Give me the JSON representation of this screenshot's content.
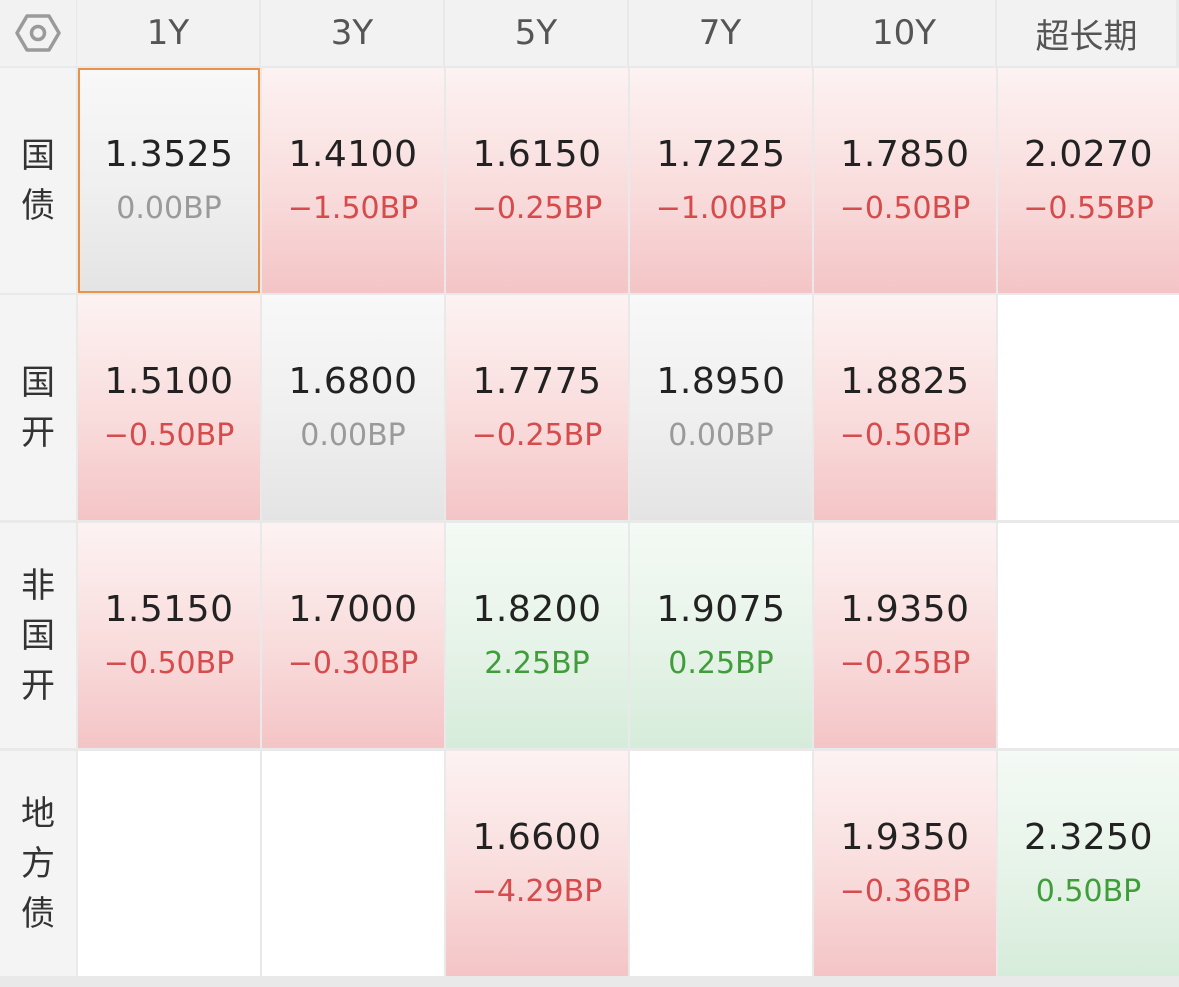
{
  "columns": [
    "1Y",
    "3Y",
    "5Y",
    "7Y",
    "10Y",
    "超长期"
  ],
  "rows": [
    {
      "label": [
        "国",
        "债"
      ],
      "cells": [
        {
          "rate": "1.3525",
          "change": "0.00BP",
          "trend": "flat",
          "selected": true
        },
        {
          "rate": "1.4100",
          "change": "−1.50BP",
          "trend": "down"
        },
        {
          "rate": "1.6150",
          "change": "−0.25BP",
          "trend": "down"
        },
        {
          "rate": "1.7225",
          "change": "−1.00BP",
          "trend": "down"
        },
        {
          "rate": "1.7850",
          "change": "−0.50BP",
          "trend": "down"
        },
        {
          "rate": "2.0270",
          "change": "−0.55BP",
          "trend": "down"
        }
      ]
    },
    {
      "label": [
        "国",
        "开"
      ],
      "cells": [
        {
          "rate": "1.5100",
          "change": "−0.50BP",
          "trend": "down"
        },
        {
          "rate": "1.6800",
          "change": "0.00BP",
          "trend": "flat"
        },
        {
          "rate": "1.7775",
          "change": "−0.25BP",
          "trend": "down"
        },
        {
          "rate": "1.8950",
          "change": "0.00BP",
          "trend": "flat"
        },
        {
          "rate": "1.8825",
          "change": "−0.50BP",
          "trend": "down"
        },
        null
      ]
    },
    {
      "label": [
        "非",
        "国",
        "开"
      ],
      "cells": [
        {
          "rate": "1.5150",
          "change": "−0.50BP",
          "trend": "down"
        },
        {
          "rate": "1.7000",
          "change": "−0.30BP",
          "trend": "down"
        },
        {
          "rate": "1.8200",
          "change": "2.25BP",
          "trend": "up"
        },
        {
          "rate": "1.9075",
          "change": "0.25BP",
          "trend": "up"
        },
        {
          "rate": "1.9350",
          "change": "−0.25BP",
          "trend": "down"
        },
        null
      ]
    },
    {
      "label": [
        "地",
        "方",
        "债"
      ],
      "cells": [
        null,
        null,
        {
          "rate": "1.6600",
          "change": "−4.29BP",
          "trend": "down"
        },
        null,
        {
          "rate": "1.9350",
          "change": "−0.36BP",
          "trend": "down"
        },
        {
          "rate": "2.3250",
          "change": "0.50BP",
          "trend": "up"
        }
      ]
    }
  ],
  "icons": {
    "corner": "settings-hexagon-icon"
  },
  "colors": {
    "down": "#d64b4b",
    "up": "#3f9e3a",
    "flat": "#9a9a9a",
    "selected_border": "#e8924a"
  }
}
